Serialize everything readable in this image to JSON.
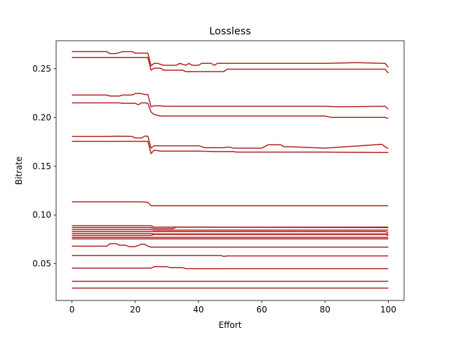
{
  "chart_data": {
    "type": "line",
    "title": "Lossless",
    "xlabel": "Effort",
    "ylabel": "Bitrate",
    "xlim": [
      -5,
      105
    ],
    "ylim": [
      0.0123,
      0.2787
    ],
    "xticks": [
      0,
      20,
      40,
      60,
      80,
      100
    ],
    "yticks": [
      0.05,
      0.1,
      0.15,
      0.2,
      0.25
    ],
    "ytick_labels": [
      "0.05",
      "0.10",
      "0.15",
      "0.20",
      "0.25"
    ],
    "grid": false,
    "legend": "none",
    "line_color": "#b22222",
    "series": [
      {
        "x": [
          0,
          11,
          12,
          14,
          16,
          19,
          20,
          24,
          25,
          26,
          27,
          29,
          33,
          34,
          36,
          37,
          38,
          40,
          41,
          44,
          45,
          46,
          60,
          80,
          90,
          99,
          100
        ],
        "y": [
          0.2675,
          0.2675,
          0.2655,
          0.2655,
          0.2675,
          0.2675,
          0.266,
          0.266,
          0.253,
          0.2555,
          0.2555,
          0.2535,
          0.2535,
          0.2555,
          0.2535,
          0.2555,
          0.2535,
          0.2535,
          0.2555,
          0.2555,
          0.2535,
          0.2555,
          0.2555,
          0.2555,
          0.2562,
          0.2555,
          0.2515
        ]
      },
      {
        "x": [
          0,
          24,
          25,
          26,
          28,
          29,
          30,
          35,
          36,
          40,
          48,
          49,
          60,
          80,
          99,
          100
        ],
        "y": [
          0.2615,
          0.2615,
          0.2485,
          0.2505,
          0.2505,
          0.2485,
          0.2485,
          0.2485,
          0.247,
          0.247,
          0.247,
          0.2495,
          0.2495,
          0.2495,
          0.2495,
          0.2455
        ]
      },
      {
        "x": [
          0,
          11,
          12,
          15,
          16,
          19,
          20,
          22,
          23,
          24,
          25,
          26,
          28,
          29,
          60,
          80,
          84,
          99,
          100
        ],
        "y": [
          0.223,
          0.223,
          0.222,
          0.222,
          0.223,
          0.223,
          0.2245,
          0.2245,
          0.2235,
          0.2235,
          0.211,
          0.212,
          0.212,
          0.2115,
          0.2115,
          0.2115,
          0.211,
          0.2115,
          0.2085
        ]
      },
      {
        "x": [
          0,
          15,
          16,
          20,
          21,
          22,
          23,
          24,
          25,
          26,
          28,
          60,
          80,
          82,
          99,
          100
        ],
        "y": [
          0.215,
          0.215,
          0.2145,
          0.2145,
          0.213,
          0.215,
          0.215,
          0.2145,
          0.2055,
          0.203,
          0.2015,
          0.2015,
          0.2015,
          0.2,
          0.2,
          0.199
        ]
      },
      {
        "x": [
          0,
          12,
          14,
          19,
          20,
          22,
          23,
          24,
          25,
          26,
          40,
          42,
          48,
          49,
          50,
          51,
          60,
          62,
          66,
          67,
          69,
          80,
          98,
          99,
          100
        ],
        "y": [
          0.1805,
          0.1805,
          0.1808,
          0.1805,
          0.179,
          0.179,
          0.1808,
          0.1808,
          0.1685,
          0.171,
          0.171,
          0.169,
          0.169,
          0.1695,
          0.1695,
          0.1685,
          0.1685,
          0.172,
          0.172,
          0.17,
          0.17,
          0.1685,
          0.1725,
          0.17,
          0.168
        ]
      },
      {
        "x": [
          0,
          24,
          25,
          26,
          28,
          40,
          45,
          51,
          52,
          60,
          80,
          100
        ],
        "y": [
          0.1755,
          0.1755,
          0.163,
          0.1665,
          0.1655,
          0.1655,
          0.165,
          0.165,
          0.1645,
          0.1645,
          0.1645,
          0.164
        ]
      },
      {
        "x": [
          0,
          22,
          24,
          25,
          26,
          40,
          60,
          80,
          100
        ],
        "y": [
          0.1135,
          0.1135,
          0.113,
          0.1095,
          0.1095,
          0.1095,
          0.1095,
          0.1095,
          0.1095
        ]
      },
      {
        "x": [
          0,
          25,
          26,
          100
        ],
        "y": [
          0.089,
          0.089,
          0.0875,
          0.0875
        ]
      },
      {
        "x": [
          0,
          25,
          26,
          32,
          33,
          100
        ],
        "y": [
          0.087,
          0.087,
          0.086,
          0.086,
          0.0875,
          0.087
        ]
      },
      {
        "x": [
          0,
          25,
          26,
          100
        ],
        "y": [
          0.085,
          0.085,
          0.0845,
          0.0845
        ]
      },
      {
        "x": [
          0,
          25,
          26,
          99,
          100
        ],
        "y": [
          0.083,
          0.083,
          0.083,
          0.083,
          0.082
        ]
      },
      {
        "x": [
          0,
          25,
          26,
          100
        ],
        "y": [
          0.081,
          0.081,
          0.0805,
          0.0805
        ]
      },
      {
        "x": [
          0,
          25,
          26,
          99,
          100
        ],
        "y": [
          0.079,
          0.079,
          0.08,
          0.08,
          0.079
        ]
      },
      {
        "x": [
          0,
          25,
          26,
          100
        ],
        "y": [
          0.077,
          0.077,
          0.077,
          0.077
        ]
      },
      {
        "x": [
          0,
          100
        ],
        "y": [
          0.0755,
          0.0755
        ]
      },
      {
        "x": [
          0,
          11,
          12,
          14,
          15,
          17,
          18,
          20,
          22,
          23,
          24,
          25,
          100
        ],
        "y": [
          0.068,
          0.068,
          0.0705,
          0.0705,
          0.069,
          0.069,
          0.0675,
          0.0675,
          0.07,
          0.07,
          0.068,
          0.067,
          0.067
        ]
      },
      {
        "x": [
          0,
          47,
          48,
          49,
          100
        ],
        "y": [
          0.0585,
          0.0585,
          0.0575,
          0.058,
          0.058
        ]
      },
      {
        "x": [
          0,
          25,
          26,
          30,
          31,
          35,
          36,
          100
        ],
        "y": [
          0.0455,
          0.0455,
          0.047,
          0.047,
          0.046,
          0.046,
          0.045,
          0.045
        ]
      },
      {
        "x": [
          0,
          100
        ],
        "y": [
          0.032,
          0.032
        ]
      },
      {
        "x": [
          0,
          100
        ],
        "y": [
          0.025,
          0.025
        ]
      }
    ]
  }
}
